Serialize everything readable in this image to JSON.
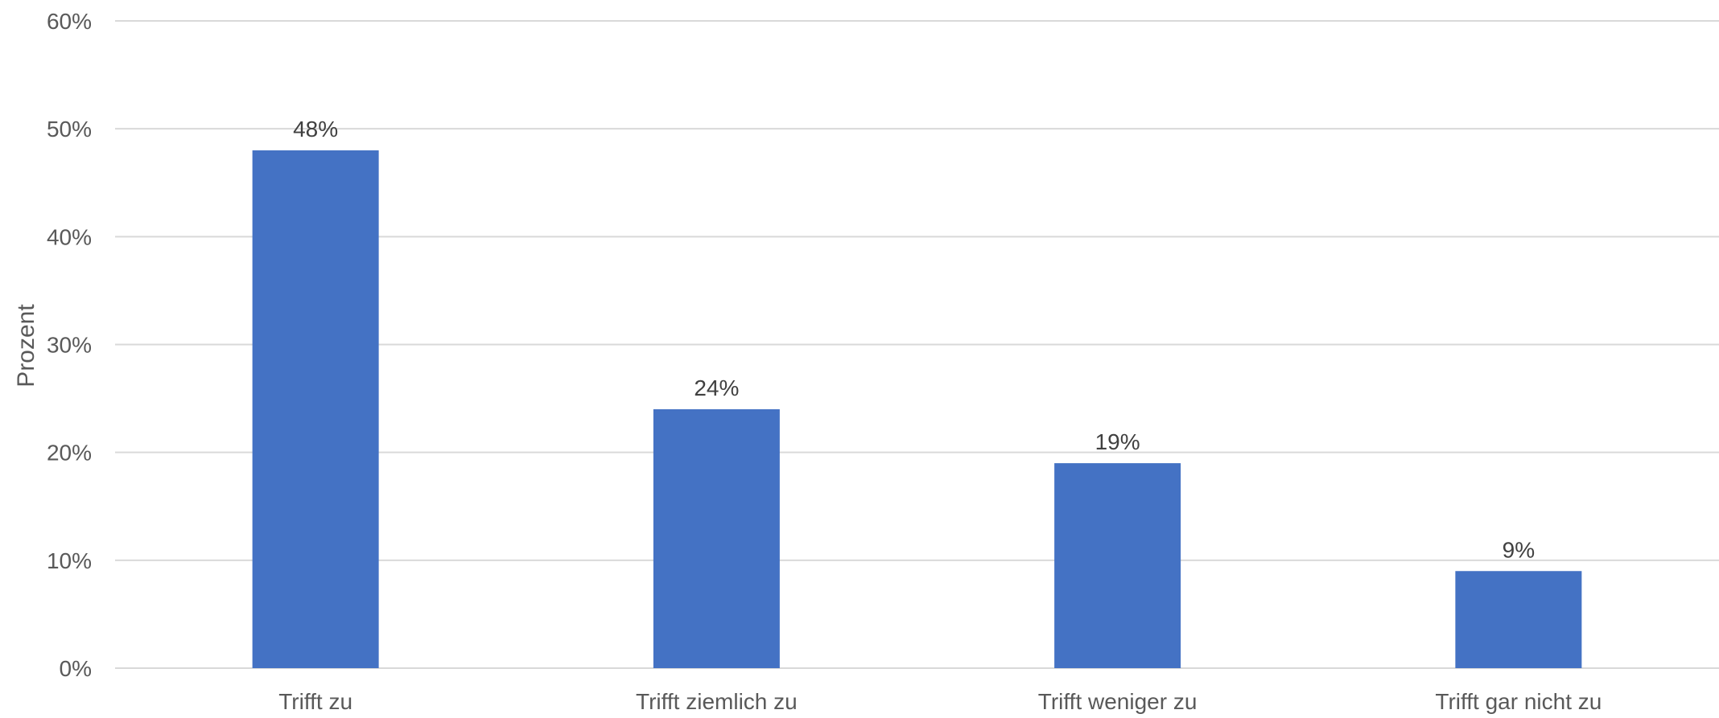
{
  "chart_data": {
    "type": "bar",
    "title": "",
    "xlabel": "",
    "ylabel": "Prozent",
    "categories": [
      "Trifft zu",
      "Trifft ziemlich zu",
      "Trifft weniger zu",
      "Trifft gar nicht zu"
    ],
    "values": [
      48,
      24,
      19,
      9
    ],
    "data_labels": [
      "48%",
      "24%",
      "19%",
      "9%"
    ],
    "ylim": [
      0,
      60
    ],
    "yticks": [
      0,
      10,
      20,
      30,
      40,
      50,
      60
    ],
    "ytick_labels": [
      "0%",
      "10%",
      "20%",
      "30%",
      "40%",
      "50%",
      "60%"
    ],
    "grid": true,
    "legend": "none",
    "bar_color": "#4472C4",
    "grid_color": "#D9D9D9"
  }
}
